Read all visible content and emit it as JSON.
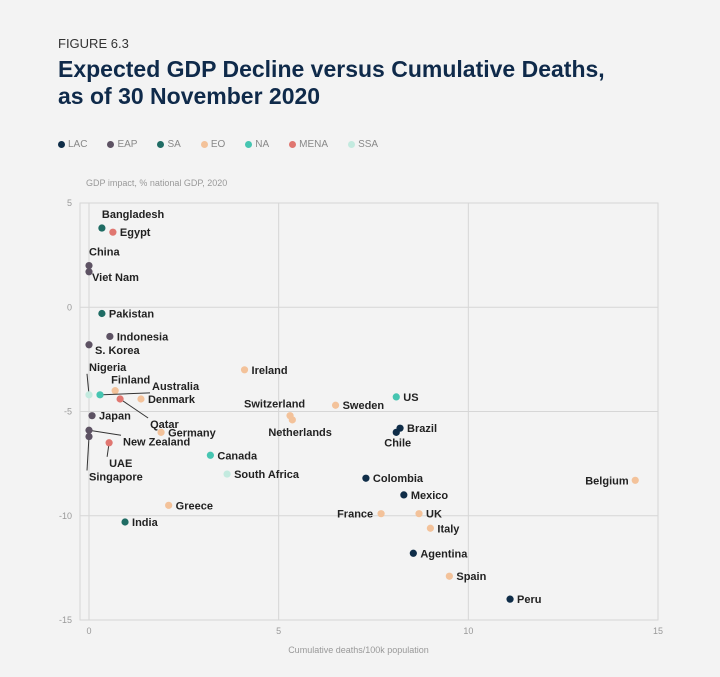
{
  "figure_label": "FIGURE 6.3",
  "chart_data": {
    "type": "scatter",
    "title": "Expected GDP Decline versus Cumulative Deaths, as of 30 November 2020",
    "ylabel": "GDP impact, % national GDP, 2020",
    "xlabel": "Cumulative deaths/100k population",
    "xlim": [
      0,
      15
    ],
    "ylim": [
      -15,
      5
    ],
    "xticks": [
      0,
      5,
      10,
      15
    ],
    "yticks": [
      5,
      0,
      -5,
      -10,
      -15
    ],
    "grid": true,
    "legend_position": "top",
    "groups": [
      {
        "name": "LAC",
        "color": "#0f2d48"
      },
      {
        "name": "EAP",
        "color": "#5d5263"
      },
      {
        "name": "SA",
        "color": "#1f6c64"
      },
      {
        "name": "EO",
        "color": "#f3c29a"
      },
      {
        "name": "NA",
        "color": "#46c5b1"
      },
      {
        "name": "MENA",
        "color": "#e07670"
      },
      {
        "name": "SSA",
        "color": "#c3eadf"
      }
    ],
    "points": [
      {
        "label": "Bangladesh",
        "group": "SA",
        "x": 0.34,
        "y": 3.8
      },
      {
        "label": "Egypt",
        "group": "MENA",
        "x": 0.63,
        "y": 3.6
      },
      {
        "label": "China",
        "group": "EAP",
        "x": 0.0,
        "y": 2.0
      },
      {
        "label": "Viet Nam",
        "group": "EAP",
        "x": 0.0,
        "y": 1.7
      },
      {
        "label": "Pakistan",
        "group": "SA",
        "x": 0.34,
        "y": -0.3
      },
      {
        "label": "Indonesia",
        "group": "EAP",
        "x": 0.55,
        "y": -1.4
      },
      {
        "label": "S. Korea",
        "group": "EAP",
        "x": 0.0,
        "y": -1.8
      },
      {
        "label": "Nigeria",
        "group": "SSA",
        "x": 0.0,
        "y": -4.2
      },
      {
        "label": "Finland",
        "group": "EO",
        "x": 0.69,
        "y": -4.0
      },
      {
        "label": "Australia",
        "group": "NA",
        "x": 0.29,
        "y": -4.2
      },
      {
        "label": "Qatar",
        "group": "MENA",
        "x": 0.82,
        "y": -4.4
      },
      {
        "label": "Denmark",
        "group": "EO",
        "x": 1.37,
        "y": -4.4
      },
      {
        "label": "Japan",
        "group": "EAP",
        "x": 0.08,
        "y": -5.2
      },
      {
        "label": "Germany",
        "group": "EO",
        "x": 1.9,
        "y": -6.0
      },
      {
        "label": "New Zealand",
        "group": "EAP",
        "x": 0.0,
        "y": -5.9
      },
      {
        "label": "Singapore",
        "group": "EAP",
        "x": 0.0,
        "y": -6.2
      },
      {
        "label": "UAE",
        "group": "MENA",
        "x": 0.53,
        "y": -6.5
      },
      {
        "label": "Canada",
        "group": "NA",
        "x": 3.2,
        "y": -7.1
      },
      {
        "label": "South Africa",
        "group": "SSA",
        "x": 3.64,
        "y": -8.0
      },
      {
        "label": "Greece",
        "group": "EO",
        "x": 2.1,
        "y": -9.5
      },
      {
        "label": "India",
        "group": "SA",
        "x": 0.95,
        "y": -10.3
      },
      {
        "label": "Ireland",
        "group": "EO",
        "x": 4.1,
        "y": -3.0
      },
      {
        "label": "Switzerland",
        "group": "EO",
        "x": 5.3,
        "y": -5.2
      },
      {
        "label": "Netherlands",
        "group": "EO",
        "x": 5.36,
        "y": -5.4
      },
      {
        "label": "Sweden",
        "group": "EO",
        "x": 6.5,
        "y": -4.7
      },
      {
        "label": "US",
        "group": "NA",
        "x": 8.1,
        "y": -4.3
      },
      {
        "label": "Brazil",
        "group": "LAC",
        "x": 8.2,
        "y": -5.8
      },
      {
        "label": "Chile",
        "group": "LAC",
        "x": 8.1,
        "y": -6.0
      },
      {
        "label": "Colombia",
        "group": "LAC",
        "x": 7.3,
        "y": -8.2
      },
      {
        "label": "Mexico",
        "group": "LAC",
        "x": 8.3,
        "y": -9.0
      },
      {
        "label": "France",
        "group": "EO",
        "x": 7.7,
        "y": -9.9
      },
      {
        "label": "UK",
        "group": "EO",
        "x": 8.7,
        "y": -9.9
      },
      {
        "label": "Italy",
        "group": "EO",
        "x": 9.0,
        "y": -10.6
      },
      {
        "label": "Agentina",
        "group": "LAC",
        "x": 8.55,
        "y": -11.8
      },
      {
        "label": "Spain",
        "group": "EO",
        "x": 9.5,
        "y": -12.9
      },
      {
        "label": "Peru",
        "group": "LAC",
        "x": 11.1,
        "y": -14.0
      },
      {
        "label": "Belgium",
        "group": "EO",
        "x": 14.4,
        "y": -8.3
      }
    ]
  }
}
